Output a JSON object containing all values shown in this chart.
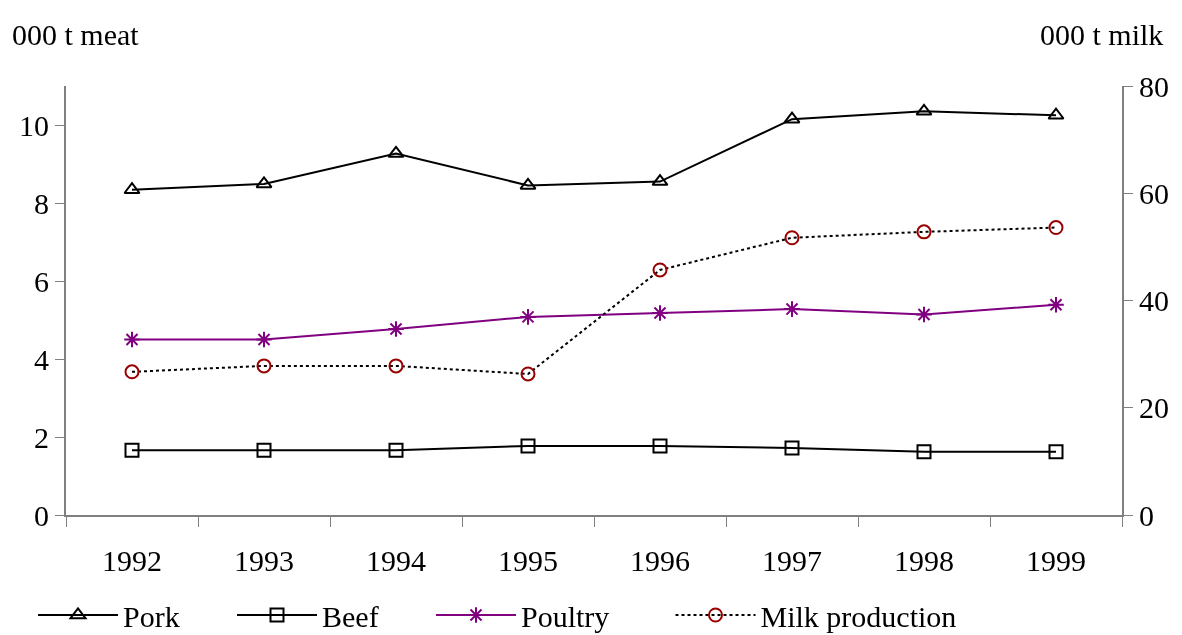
{
  "chart_data": {
    "type": "line",
    "ylabel": "000 t meat",
    "y2label": "000 t milk",
    "categories": [
      "1992",
      "1993",
      "1994",
      "1995",
      "1996",
      "1997",
      "1998",
      "1999"
    ],
    "series": [
      {
        "name": "Pork",
        "color": "#000000",
        "marker": "triangle",
        "line_style": "solid",
        "values": [
          8.34,
          8.49,
          9.27,
          8.45,
          8.55,
          10.15,
          10.35,
          10.25
        ]
      },
      {
        "name": "Beef",
        "color": "#000000",
        "marker": "square",
        "line_style": "solid",
        "values": [
          1.66,
          1.66,
          1.66,
          1.77,
          1.77,
          1.72,
          1.62,
          1.62
        ]
      },
      {
        "name": "Poultry",
        "color": "#800080",
        "marker": "cross",
        "line_style": "solid",
        "values": [
          4.5,
          4.5,
          4.77,
          5.08,
          5.18,
          5.28,
          5.14,
          5.39
        ]
      },
      {
        "name": "Milk production",
        "color": "#000000",
        "colors": [
          "#990000",
          "#990000",
          "#990000",
          "#990000",
          "#990000",
          "#990000",
          "#990000",
          "#990000"
        ],
        "marker": "circle",
        "line_style": "dotted",
        "axis": "y2",
        "values": [
          26.7,
          27.8,
          27.8,
          26.3,
          45.7,
          51.7,
          52.8,
          53.6
        ]
      }
    ],
    "ylim": [
      0,
      11
    ],
    "yticks": [
      0,
      2,
      4,
      6,
      8,
      10
    ],
    "y2lim": [
      0,
      80
    ],
    "y2ticks": [
      0,
      20,
      40,
      60,
      80
    ],
    "grid": false,
    "legend": "bottom"
  }
}
